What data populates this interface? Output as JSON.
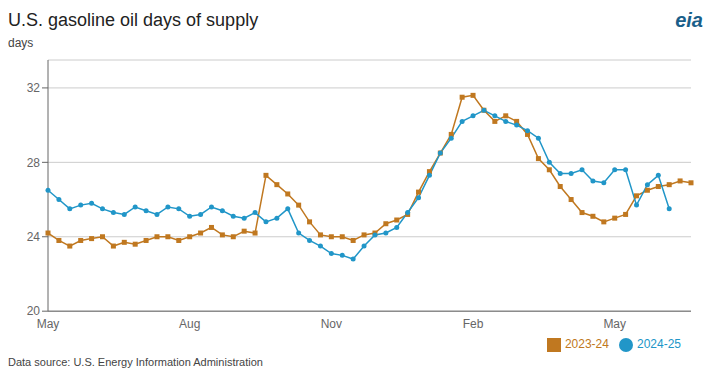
{
  "chart_data": {
    "type": "line",
    "title": "U.S. gasoline oil days of supply",
    "y_label": "days",
    "annotations": [
      "Data source: U.S. Energy Information Administration",
      "eia"
    ],
    "categories": [
      "May",
      null,
      null,
      null,
      null,
      null,
      null,
      null,
      null,
      null,
      null,
      null,
      null,
      "Aug",
      null,
      null,
      null,
      null,
      null,
      null,
      null,
      null,
      null,
      null,
      null,
      null,
      "Nov",
      null,
      null,
      null,
      null,
      null,
      null,
      null,
      null,
      null,
      null,
      null,
      null,
      "Feb",
      null,
      null,
      null,
      null,
      null,
      null,
      null,
      null,
      null,
      null,
      null,
      null,
      "May",
      null,
      null,
      null,
      null,
      null,
      null,
      null
    ],
    "series": [
      {
        "name": "2023-24",
        "color": "#c07820",
        "marker": "square",
        "values": [
          24.2,
          23.8,
          23.5,
          23.8,
          23.9,
          24.0,
          23.5,
          23.7,
          23.6,
          23.8,
          24.0,
          24.0,
          23.8,
          24.0,
          24.2,
          24.5,
          24.1,
          24.0,
          24.3,
          24.2,
          27.3,
          26.8,
          26.3,
          25.7,
          24.8,
          24.1,
          24.0,
          24.0,
          23.8,
          24.1,
          24.2,
          24.7,
          24.9,
          25.2,
          26.4,
          27.5,
          28.5,
          29.5,
          31.5,
          31.6,
          30.8,
          30.2,
          30.5,
          30.2,
          29.5,
          28.2,
          27.6,
          26.7,
          26.0,
          25.3,
          25.1,
          24.8,
          25.0,
          25.2,
          26.2,
          26.5,
          26.7,
          26.8,
          27.0,
          26.9
        ]
      },
      {
        "name": "2024-25",
        "color": "#2196c8",
        "marker": "circle",
        "values": [
          26.5,
          26.0,
          25.5,
          25.7,
          25.8,
          25.5,
          25.3,
          25.2,
          25.6,
          25.4,
          25.2,
          25.6,
          25.5,
          25.1,
          25.2,
          25.6,
          25.4,
          25.1,
          25.0,
          25.3,
          24.8,
          25.0,
          25.5,
          24.2,
          23.8,
          23.5,
          23.1,
          23.0,
          22.8,
          23.5,
          24.1,
          24.2,
          24.5,
          25.3,
          26.1,
          27.3,
          28.5,
          29.3,
          30.2,
          30.5,
          30.8,
          30.5,
          30.2,
          30.0,
          29.7,
          29.3,
          28.0,
          27.4,
          27.4,
          27.6,
          27.0,
          26.9,
          27.6,
          27.6,
          25.7,
          26.8,
          27.3,
          25.5,
          null,
          null
        ]
      }
    ],
    "ylim": [
      20,
      33.5
    ],
    "yticks": [
      20,
      24,
      28,
      32
    ],
    "grid": true,
    "legend": "lower right"
  }
}
